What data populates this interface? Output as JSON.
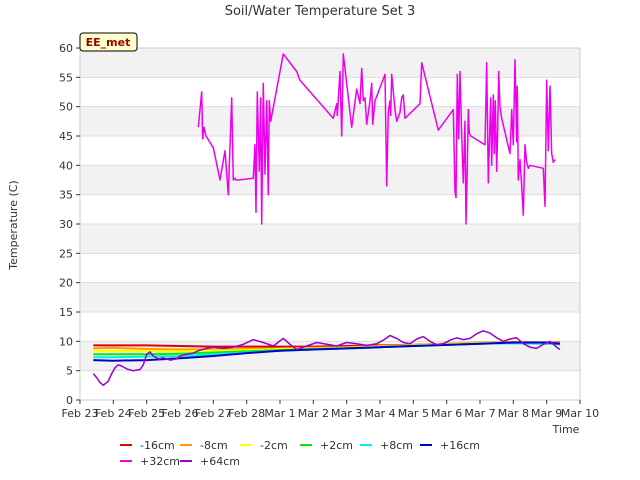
{
  "chart_data": {
    "type": "line",
    "title": "Soil/Water Temperature Set 3",
    "xlabel": "Time",
    "ylabel": "Temperature (C)",
    "station_label": "EE_met",
    "xlim": [
      0,
      15
    ],
    "ylim": [
      0,
      60
    ],
    "x_ticks": [
      {
        "x": 0,
        "label": "Feb 23"
      },
      {
        "x": 1,
        "label": "Feb 24"
      },
      {
        "x": 2,
        "label": "Feb 25"
      },
      {
        "x": 3,
        "label": "Feb 26"
      },
      {
        "x": 4,
        "label": "Feb 27"
      },
      {
        "x": 5,
        "label": "Feb 28"
      },
      {
        "x": 6,
        "label": "Mar 1"
      },
      {
        "x": 7,
        "label": "Mar 2"
      },
      {
        "x": 8,
        "label": "Mar 3"
      },
      {
        "x": 9,
        "label": "Mar 4"
      },
      {
        "x": 10,
        "label": "Mar 5"
      },
      {
        "x": 11,
        "label": "Mar 6"
      },
      {
        "x": 12,
        "label": "Mar 7"
      },
      {
        "x": 13,
        "label": "Mar 8"
      },
      {
        "x": 14,
        "label": "Mar 9"
      },
      {
        "x": 15,
        "label": "Mar 10"
      }
    ],
    "y_ticks": [
      0,
      5,
      10,
      15,
      20,
      25,
      30,
      35,
      40,
      45,
      50,
      55,
      60
    ],
    "legend_position": "bottom",
    "series": [
      {
        "name": "-16cm",
        "color": "#dd0000",
        "x": [
          0.4,
          1.0,
          2.0,
          3.0,
          4.0,
          5.0,
          6.0,
          7.0,
          8.0,
          9.0,
          10.0,
          11.0,
          12.0,
          13.0,
          14.0,
          14.4
        ],
        "y": [
          9.3,
          9.3,
          9.3,
          9.2,
          9.1,
          9.1,
          9.1,
          9.1,
          9.2,
          9.3,
          9.4,
          9.6,
          9.7,
          9.8,
          9.8,
          9.8
        ]
      },
      {
        "name": "-8cm",
        "color": "#ff9900",
        "x": [
          0.4,
          1.0,
          2.0,
          3.0,
          4.0,
          5.0,
          6.0,
          7.0,
          8.0,
          9.0,
          10.0,
          11.0,
          12.0,
          13.0,
          14.0,
          14.4
        ],
        "y": [
          8.8,
          8.9,
          8.7,
          8.6,
          8.6,
          8.7,
          8.8,
          8.9,
          9.0,
          9.2,
          9.4,
          9.6,
          9.8,
          9.9,
          9.8,
          9.7
        ]
      },
      {
        "name": "-2cm",
        "color": "#ffff00",
        "x": [
          0.4,
          1.0,
          2.0,
          3.0,
          4.0,
          5.0,
          6.0,
          7.0,
          8.0,
          9.0,
          10.0,
          11.0,
          12.0,
          13.0,
          14.0,
          14.4
        ],
        "y": [
          8.3,
          8.4,
          8.3,
          8.3,
          8.4,
          8.5,
          8.7,
          8.8,
          8.9,
          9.1,
          9.3,
          9.5,
          9.7,
          9.8,
          9.7,
          9.6
        ]
      },
      {
        "name": "+2cm",
        "color": "#00ee00",
        "x": [
          0.4,
          1.0,
          2.0,
          3.0,
          4.0,
          5.0,
          6.0,
          7.0,
          8.0,
          9.0,
          10.0,
          11.0,
          12.0,
          13.0,
          14.0,
          14.4
        ],
        "y": [
          7.8,
          7.8,
          7.8,
          7.9,
          8.1,
          8.3,
          8.5,
          8.7,
          8.8,
          9.0,
          9.2,
          9.4,
          9.6,
          9.7,
          9.6,
          9.5
        ]
      },
      {
        "name": "+8cm",
        "color": "#00eeee",
        "x": [
          0.4,
          1.0,
          2.0,
          3.0,
          4.0,
          5.0,
          6.0,
          7.0,
          8.0,
          9.0,
          10.0,
          11.0,
          12.0,
          13.0,
          14.0,
          14.4
        ],
        "y": [
          7.3,
          7.3,
          7.4,
          7.5,
          7.8,
          8.1,
          8.4,
          8.6,
          8.8,
          9.0,
          9.2,
          9.4,
          9.6,
          9.7,
          9.6,
          9.5
        ]
      },
      {
        "name": "+16cm",
        "color": "#0000cc",
        "x": [
          0.4,
          1.0,
          2.0,
          3.0,
          4.0,
          5.0,
          6.0,
          7.0,
          8.0,
          9.0,
          10.0,
          11.0,
          12.0,
          13.0,
          14.0,
          14.4
        ],
        "y": [
          6.8,
          6.7,
          6.8,
          7.1,
          7.5,
          8.0,
          8.4,
          8.6,
          8.8,
          9.0,
          9.2,
          9.4,
          9.6,
          9.8,
          9.8,
          9.6
        ]
      },
      {
        "name": "+32cm",
        "color": "#ee00ee",
        "x": [
          3.55,
          3.65,
          3.68,
          3.72,
          3.78,
          4.0,
          4.2,
          4.35,
          4.45,
          4.55,
          4.6,
          4.65,
          4.68,
          4.75,
          5.2,
          5.25,
          5.28,
          5.32,
          5.38,
          5.42,
          5.45,
          5.5,
          5.55,
          5.6,
          5.65,
          5.68,
          5.72,
          6.1,
          6.5,
          6.6,
          7.6,
          7.7,
          7.72,
          7.8,
          7.85,
          7.9,
          8.15,
          8.3,
          8.4,
          8.45,
          8.5,
          8.55,
          8.6,
          8.7,
          8.75,
          8.78,
          8.85,
          9.15,
          9.2,
          9.25,
          9.3,
          9.32,
          9.35,
          9.45,
          9.5,
          9.6,
          9.65,
          9.7,
          9.75,
          10.2,
          10.25,
          10.75,
          11.2,
          11.25,
          11.28,
          11.32,
          11.36,
          11.4,
          11.45,
          11.5,
          11.55,
          11.58,
          11.62,
          11.65,
          11.68,
          11.72,
          12.15,
          12.2,
          12.25,
          12.32,
          12.35,
          12.4,
          12.43,
          12.46,
          12.5,
          12.53,
          12.56,
          12.6,
          12.65,
          12.9,
          12.95,
          13.0,
          13.05,
          13.1,
          13.12,
          13.15,
          13.2,
          13.25,
          13.3,
          13.35,
          13.4,
          13.45,
          13.5,
          13.9,
          13.95,
          14.0,
          14.05,
          14.1,
          14.15,
          14.2,
          14.25
        ],
        "y": [
          46.5,
          52.5,
          44.5,
          46.5,
          45.0,
          43.0,
          37.5,
          42.5,
          35.0,
          51.5,
          37.5,
          37.8,
          37.5,
          37.5,
          37.8,
          43.5,
          32.0,
          52.5,
          39.0,
          51.5,
          30.0,
          54.0,
          38.5,
          51.0,
          35.0,
          51.0,
          47.5,
          59.0,
          56.0,
          54.5,
          48.0,
          50.5,
          48.5,
          56.0,
          45.0,
          59.0,
          46.5,
          53.0,
          50.5,
          56.5,
          51.0,
          51.5,
          47.0,
          51.0,
          54.0,
          47.0,
          51.0,
          55.5,
          36.5,
          49.0,
          51.0,
          48.5,
          55.5,
          49.5,
          47.5,
          49.0,
          51.5,
          52.0,
          48.0,
          50.5,
          57.5,
          46.0,
          49.5,
          35.5,
          34.5,
          55.5,
          44.5,
          56.0,
          45.0,
          37.0,
          47.5,
          30.0,
          39.5,
          49.5,
          45.5,
          45.0,
          43.5,
          57.5,
          37.0,
          51.5,
          40.0,
          52.0,
          42.0,
          51.0,
          39.0,
          46.0,
          56.0,
          50.0,
          48.0,
          42.0,
          49.5,
          43.5,
          58.0,
          44.0,
          53.5,
          37.5,
          41.0,
          36.5,
          31.5,
          43.5,
          40.5,
          39.5,
          40.0,
          39.5,
          33.0,
          54.5,
          42.5,
          53.5,
          42.0,
          40.5,
          41.0
        ]
      },
      {
        "name": "+64cm",
        "color": "#9900cc",
        "x": [
          0.4,
          0.5,
          0.6,
          0.7,
          0.85,
          0.95,
          1.05,
          1.15,
          1.25,
          1.4,
          1.6,
          1.8,
          1.9,
          2.0,
          2.1,
          2.2,
          2.35,
          2.5,
          2.7,
          2.9,
          3.0,
          3.2,
          3.4,
          3.6,
          3.8,
          4.0,
          4.3,
          4.6,
          4.9,
          5.2,
          5.5,
          5.8,
          6.1,
          6.3,
          6.5,
          6.8,
          7.1,
          7.4,
          7.7,
          8.0,
          8.3,
          8.6,
          8.9,
          9.1,
          9.3,
          9.5,
          9.7,
          9.9,
          10.1,
          10.3,
          10.5,
          10.7,
          10.9,
          11.1,
          11.3,
          11.5,
          11.7,
          11.9,
          12.1,
          12.3,
          12.5,
          12.7,
          12.9,
          13.1,
          13.3,
          13.5,
          13.7,
          13.9,
          14.1,
          14.3,
          14.4
        ],
        "y": [
          4.5,
          3.8,
          3.0,
          2.5,
          3.2,
          4.5,
          5.5,
          6.0,
          5.8,
          5.3,
          5.0,
          5.2,
          6.0,
          7.8,
          8.2,
          7.5,
          7.0,
          7.2,
          6.8,
          7.0,
          7.5,
          7.8,
          8.0,
          8.5,
          8.8,
          9.0,
          8.8,
          9.0,
          9.5,
          10.3,
          9.8,
          9.2,
          10.5,
          9.5,
          8.6,
          9.2,
          9.8,
          9.5,
          9.2,
          9.8,
          9.6,
          9.3,
          9.6,
          10.2,
          11.0,
          10.5,
          9.8,
          9.6,
          10.4,
          10.8,
          10.0,
          9.4,
          9.6,
          10.2,
          10.6,
          10.3,
          10.5,
          11.3,
          11.8,
          11.4,
          10.6,
          10.0,
          10.4,
          10.6,
          9.6,
          9.0,
          8.8,
          9.5,
          10.0,
          9.0,
          8.6
        ]
      }
    ]
  }
}
